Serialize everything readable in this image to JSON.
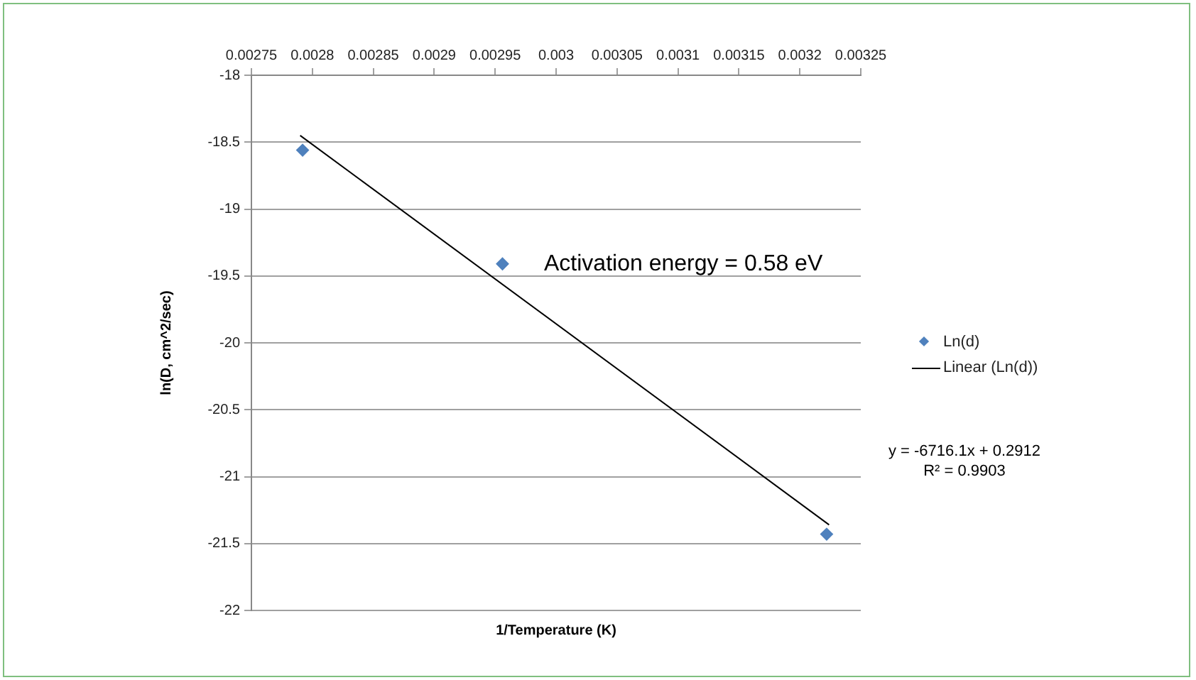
{
  "chart_data": {
    "type": "scatter",
    "xlabel": "1/Temperature (K)",
    "ylabel": "ln(D, cm^2/sec)",
    "xlim": [
      0.00275,
      0.00325
    ],
    "xticks": [
      0.00275,
      0.0028,
      0.00285,
      0.0029,
      0.00295,
      0.003,
      0.00305,
      0.0031,
      0.00315,
      0.0032,
      0.00325
    ],
    "ylim": [
      -22,
      -18
    ],
    "yticks": [
      -22,
      -21.5,
      -21,
      -20.5,
      -20,
      -19.5,
      -19,
      -18.5,
      -18
    ],
    "grid": "y",
    "legend": "right",
    "series": [
      {
        "name": "Ln(d)",
        "marker": "diamond",
        "color": "#4f81bd",
        "x": [
          0.002792,
          0.002956,
          0.003222
        ],
        "values": [
          -18.56,
          -19.41,
          -21.43
        ]
      },
      {
        "name": "Linear (Ln(d))",
        "type": "line",
        "marker": "none",
        "line_style": "solid",
        "color": "#000000",
        "x": [
          0.00279,
          0.003224
        ],
        "values": [
          -18.45,
          -21.36
        ]
      }
    ],
    "annotations": [
      "Activation energy = 0.58 eV",
      "y = -6716.1x + 0.2912",
      "R² = 0.9903"
    ]
  }
}
